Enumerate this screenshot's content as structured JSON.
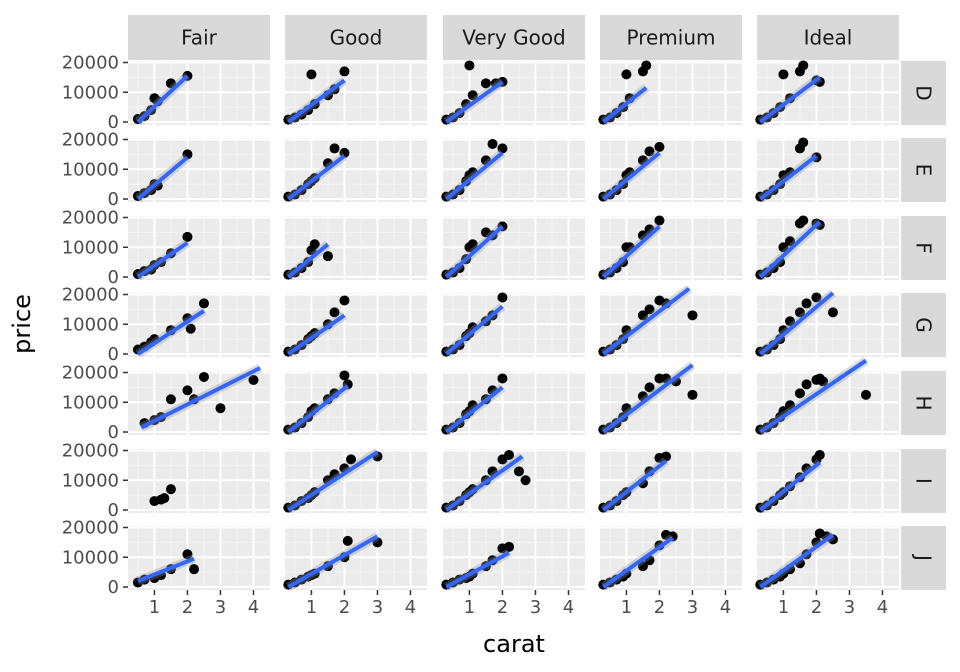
{
  "chart_data": {
    "type": "scatter",
    "title": "",
    "xlabel": "carat",
    "ylabel": "price",
    "xlim": [
      0.2,
      4.5
    ],
    "ylim": [
      -1000,
      20500
    ],
    "x_ticks": [
      1,
      2,
      3,
      4
    ],
    "x_tick_labels": [
      "1",
      "2",
      "3",
      "4"
    ],
    "y_ticks": [
      0,
      10000,
      20000
    ],
    "y_tick_labels": [
      "0",
      "10000",
      "20000"
    ],
    "grid": true,
    "facet_cols": [
      "Fair",
      "Good",
      "Very Good",
      "Premium",
      "Ideal"
    ],
    "facet_rows": [
      "D",
      "E",
      "F",
      "G",
      "H",
      "I",
      "J"
    ],
    "facets": [
      {
        "row": "D",
        "col": "Fair",
        "x": [
          0.5,
          0.7,
          0.9,
          1.0,
          1.1,
          1.5,
          2.0
        ],
        "y": [
          1000,
          2000,
          4000,
          8000,
          7000,
          13000,
          15500
        ],
        "fit": [
          [
            0.5,
            0
          ],
          [
            2.0,
            15500
          ]
        ]
      },
      {
        "row": "D",
        "col": "Good",
        "x": [
          0.3,
          0.5,
          0.7,
          0.9,
          1.0,
          1.1,
          1.5,
          1.7,
          2.0
        ],
        "y": [
          800,
          1500,
          2500,
          4000,
          16000,
          6000,
          9000,
          11000,
          17000
        ],
        "fit": [
          [
            0.3,
            0
          ],
          [
            2.0,
            14000
          ]
        ]
      },
      {
        "row": "D",
        "col": "Very Good",
        "x": [
          0.3,
          0.5,
          0.7,
          0.9,
          1.0,
          1.1,
          1.5,
          1.8,
          2.0
        ],
        "y": [
          800,
          1500,
          3000,
          6000,
          19000,
          9000,
          13000,
          13000,
          13500
        ],
        "fit": [
          [
            0.3,
            0
          ],
          [
            2.0,
            13500
          ]
        ]
      },
      {
        "row": "D",
        "col": "Premium",
        "x": [
          0.3,
          0.5,
          0.7,
          0.9,
          1.0,
          1.1,
          1.5,
          1.6
        ],
        "y": [
          800,
          1500,
          3000,
          5000,
          16000,
          8000,
          17000,
          19000
        ],
        "fit": [
          [
            0.3,
            0
          ],
          [
            1.6,
            11500
          ]
        ]
      },
      {
        "row": "D",
        "col": "Ideal",
        "x": [
          0.3,
          0.5,
          0.7,
          0.9,
          1.0,
          1.2,
          1.5,
          1.6,
          2.0,
          2.1
        ],
        "y": [
          800,
          1500,
          3000,
          5000,
          16000,
          8000,
          17000,
          19000,
          14000,
          13500
        ],
        "fit": [
          [
            0.3,
            0
          ],
          [
            2.1,
            15000
          ]
        ]
      },
      {
        "row": "E",
        "col": "Fair",
        "x": [
          0.5,
          0.7,
          0.9,
          1.0,
          1.1,
          2.0
        ],
        "y": [
          1000,
          2000,
          3000,
          5000,
          4500,
          15000
        ],
        "fit": [
          [
            0.5,
            0
          ],
          [
            2.0,
            14000
          ]
        ]
      },
      {
        "row": "E",
        "col": "Good",
        "x": [
          0.3,
          0.5,
          0.7,
          0.9,
          1.0,
          1.1,
          1.5,
          1.7,
          2.0
        ],
        "y": [
          800,
          1500,
          3000,
          5000,
          6000,
          7000,
          12000,
          17000,
          15500
        ],
        "fit": [
          [
            0.3,
            0
          ],
          [
            2.0,
            14500
          ]
        ]
      },
      {
        "row": "E",
        "col": "Very Good",
        "x": [
          0.3,
          0.5,
          0.7,
          0.9,
          1.0,
          1.1,
          1.5,
          1.7,
          2.0
        ],
        "y": [
          800,
          1500,
          3000,
          6000,
          8000,
          9000,
          13000,
          18500,
          17000
        ],
        "fit": [
          [
            0.3,
            0
          ],
          [
            2.0,
            15500
          ]
        ]
      },
      {
        "row": "E",
        "col": "Premium",
        "x": [
          0.3,
          0.5,
          0.7,
          0.9,
          1.0,
          1.1,
          1.5,
          1.7,
          2.0
        ],
        "y": [
          800,
          1500,
          3000,
          5000,
          8000,
          9000,
          13000,
          16000,
          17500
        ],
        "fit": [
          [
            0.3,
            0
          ],
          [
            2.0,
            15500
          ]
        ]
      },
      {
        "row": "E",
        "col": "Ideal",
        "x": [
          0.3,
          0.5,
          0.7,
          0.9,
          1.0,
          1.2,
          1.5,
          1.6,
          2.0
        ],
        "y": [
          800,
          1500,
          3000,
          5000,
          8000,
          9000,
          17000,
          19000,
          14000
        ],
        "fit": [
          [
            0.3,
            0
          ],
          [
            2.0,
            14500
          ]
        ]
      },
      {
        "row": "F",
        "col": "Fair",
        "x": [
          0.5,
          0.7,
          0.9,
          1.0,
          1.2,
          1.5,
          2.0
        ],
        "y": [
          1000,
          2000,
          2500,
          4000,
          5000,
          8000,
          13500
        ],
        "fit": [
          [
            0.5,
            0
          ],
          [
            2.0,
            11500
          ]
        ]
      },
      {
        "row": "F",
        "col": "Good",
        "x": [
          0.3,
          0.5,
          0.7,
          0.9,
          1.0,
          1.1,
          1.5
        ],
        "y": [
          800,
          1500,
          3000,
          5000,
          9000,
          11000,
          7000
        ],
        "fit": [
          [
            0.3,
            0
          ],
          [
            1.5,
            11000
          ]
        ]
      },
      {
        "row": "F",
        "col": "Very Good",
        "x": [
          0.3,
          0.5,
          0.7,
          0.9,
          1.0,
          1.1,
          1.5,
          1.7,
          2.0
        ],
        "y": [
          800,
          1500,
          3000,
          6000,
          10000,
          11000,
          15000,
          14000,
          17000
        ],
        "fit": [
          [
            0.3,
            0
          ],
          [
            2.0,
            17000
          ]
        ]
      },
      {
        "row": "F",
        "col": "Premium",
        "x": [
          0.3,
          0.5,
          0.7,
          0.9,
          1.0,
          1.1,
          1.5,
          1.7,
          2.0
        ],
        "y": [
          800,
          1500,
          3000,
          5000,
          10000,
          10000,
          14000,
          16000,
          19000
        ],
        "fit": [
          [
            0.3,
            0
          ],
          [
            2.0,
            17000
          ]
        ]
      },
      {
        "row": "F",
        "col": "Ideal",
        "x": [
          0.3,
          0.5,
          0.7,
          0.9,
          1.0,
          1.2,
          1.5,
          1.6,
          2.0,
          2.1
        ],
        "y": [
          800,
          1500,
          3000,
          5000,
          10000,
          12000,
          18000,
          19000,
          18000,
          17500
        ],
        "fit": [
          [
            0.3,
            0
          ],
          [
            2.1,
            18500
          ]
        ]
      },
      {
        "row": "G",
        "col": "Fair",
        "x": [
          0.5,
          0.7,
          0.9,
          1.0,
          1.5,
          2.0,
          2.1,
          2.5
        ],
        "y": [
          1500,
          2500,
          4000,
          5000,
          8000,
          12000,
          8500,
          17000
        ],
        "fit": [
          [
            0.5,
            0
          ],
          [
            2.5,
            14500
          ]
        ]
      },
      {
        "row": "G",
        "col": "Good",
        "x": [
          0.3,
          0.5,
          0.7,
          0.9,
          1.0,
          1.1,
          1.5,
          1.7,
          2.0
        ],
        "y": [
          800,
          1500,
          3000,
          5000,
          6000,
          7000,
          10000,
          14000,
          18000
        ],
        "fit": [
          [
            0.3,
            0
          ],
          [
            2.0,
            13000
          ]
        ]
      },
      {
        "row": "G",
        "col": "Very Good",
        "x": [
          0.3,
          0.5,
          0.7,
          0.9,
          1.0,
          1.1,
          1.5,
          1.7,
          2.0
        ],
        "y": [
          800,
          1500,
          3000,
          6000,
          7000,
          9000,
          11000,
          13000,
          19000
        ],
        "fit": [
          [
            0.3,
            0
          ],
          [
            2.0,
            16000
          ]
        ]
      },
      {
        "row": "G",
        "col": "Premium",
        "x": [
          0.3,
          0.5,
          0.7,
          0.9,
          1.0,
          1.5,
          1.7,
          2.0,
          2.2,
          3.0
        ],
        "y": [
          800,
          1500,
          3000,
          5000,
          8000,
          13000,
          15000,
          18000,
          17000,
          13000
        ],
        "fit": [
          [
            0.3,
            0
          ],
          [
            2.9,
            22000
          ]
        ]
      },
      {
        "row": "G",
        "col": "Ideal",
        "x": [
          0.3,
          0.5,
          0.7,
          0.9,
          1.0,
          1.2,
          1.5,
          1.7,
          2.0,
          2.5
        ],
        "y": [
          800,
          1500,
          3000,
          5000,
          8000,
          11000,
          14000,
          17000,
          19000,
          14000
        ],
        "fit": [
          [
            0.3,
            0
          ],
          [
            2.5,
            20500
          ]
        ]
      },
      {
        "row": "H",
        "col": "Fair",
        "x": [
          0.7,
          1.0,
          1.2,
          1.5,
          2.0,
          2.2,
          2.5,
          3.0,
          4.0
        ],
        "y": [
          3000,
          4000,
          5000,
          11000,
          14000,
          11000,
          18500,
          8000,
          17500
        ],
        "fit": [
          [
            0.6,
            1500
          ],
          [
            4.2,
            21500
          ]
        ]
      },
      {
        "row": "H",
        "col": "Good",
        "x": [
          0.3,
          0.5,
          0.7,
          0.9,
          1.0,
          1.1,
          1.5,
          1.7,
          2.0,
          2.1
        ],
        "y": [
          800,
          1500,
          3000,
          5000,
          7000,
          8000,
          11000,
          13000,
          19000,
          16000
        ],
        "fit": [
          [
            0.3,
            0
          ],
          [
            2.1,
            15500
          ]
        ]
      },
      {
        "row": "H",
        "col": "Very Good",
        "x": [
          0.3,
          0.5,
          0.7,
          0.9,
          1.0,
          1.1,
          1.5,
          1.7,
          2.0
        ],
        "y": [
          800,
          1500,
          3000,
          6000,
          7000,
          9000,
          11000,
          14000,
          18000
        ],
        "fit": [
          [
            0.3,
            0
          ],
          [
            2.0,
            15000
          ]
        ]
      },
      {
        "row": "H",
        "col": "Premium",
        "x": [
          0.3,
          0.5,
          0.7,
          0.9,
          1.0,
          1.5,
          1.7,
          2.0,
          2.2,
          2.5,
          3.0
        ],
        "y": [
          800,
          1500,
          3000,
          5000,
          8000,
          12000,
          15000,
          18000,
          18000,
          17000,
          12500
        ],
        "fit": [
          [
            0.3,
            0
          ],
          [
            3.0,
            22500
          ]
        ]
      },
      {
        "row": "H",
        "col": "Ideal",
        "x": [
          0.3,
          0.5,
          0.7,
          0.9,
          1.0,
          1.2,
          1.5,
          1.7,
          2.0,
          2.1,
          2.2,
          3.5
        ],
        "y": [
          800,
          1500,
          3000,
          5000,
          7000,
          9000,
          13000,
          16000,
          17500,
          18000,
          17000,
          12500
        ],
        "fit": [
          [
            0.3,
            0
          ],
          [
            3.5,
            24000
          ]
        ]
      },
      {
        "row": "I",
        "col": "Fair",
        "x": [
          1.0,
          1.2,
          1.3,
          1.5
        ],
        "y": [
          3000,
          3500,
          4000,
          7000
        ],
        "fit": []
      },
      {
        "row": "I",
        "col": "Good",
        "x": [
          0.3,
          0.5,
          0.7,
          0.9,
          1.0,
          1.1,
          1.5,
          1.7,
          2.0,
          2.2,
          3.0
        ],
        "y": [
          800,
          1500,
          3000,
          4000,
          5000,
          6000,
          10000,
          12000,
          14000,
          17000,
          18000
        ],
        "fit": [
          [
            0.3,
            0
          ],
          [
            3.0,
            19500
          ]
        ]
      },
      {
        "row": "I",
        "col": "Very Good",
        "x": [
          0.3,
          0.5,
          0.7,
          0.9,
          1.0,
          1.1,
          1.5,
          1.7,
          2.0,
          2.2,
          2.5,
          2.7
        ],
        "y": [
          800,
          1500,
          3000,
          5000,
          6000,
          7000,
          10000,
          13000,
          17000,
          18500,
          13000,
          10000
        ],
        "fit": [
          [
            0.3,
            0
          ],
          [
            2.6,
            18000
          ]
        ]
      },
      {
        "row": "I",
        "col": "Premium",
        "x": [
          0.3,
          0.5,
          0.7,
          0.9,
          1.0,
          1.5,
          1.7,
          2.0,
          2.2
        ],
        "y": [
          800,
          1500,
          3000,
          5000,
          6000,
          9000,
          13000,
          17500,
          18000
        ],
        "fit": [
          [
            0.3,
            0
          ],
          [
            2.2,
            16500
          ]
        ]
      },
      {
        "row": "I",
        "col": "Ideal",
        "x": [
          0.3,
          0.5,
          0.7,
          0.9,
          1.0,
          1.2,
          1.5,
          1.7,
          2.0,
          2.1
        ],
        "y": [
          800,
          1500,
          3000,
          5000,
          6000,
          8000,
          11000,
          14000,
          17000,
          18500
        ],
        "fit": [
          [
            0.3,
            0
          ],
          [
            2.1,
            16000
          ]
        ]
      },
      {
        "row": "J",
        "col": "Fair",
        "x": [
          0.5,
          0.7,
          1.0,
          1.2,
          1.5,
          2.0,
          2.2
        ],
        "y": [
          1500,
          2500,
          3000,
          4000,
          6000,
          11000,
          6000
        ],
        "fit": [
          [
            0.5,
            2000
          ],
          [
            2.2,
            9500
          ]
        ]
      },
      {
        "row": "J",
        "col": "Good",
        "x": [
          0.3,
          0.5,
          0.7,
          0.9,
          1.0,
          1.1,
          1.5,
          2.0,
          2.1,
          3.0
        ],
        "y": [
          800,
          1500,
          2500,
          3500,
          4000,
          4500,
          7000,
          10000,
          15500,
          15000
        ],
        "fit": [
          [
            0.3,
            0
          ],
          [
            3.0,
            17000
          ]
        ]
      },
      {
        "row": "J",
        "col": "Very Good",
        "x": [
          0.3,
          0.5,
          0.7,
          0.9,
          1.0,
          1.1,
          1.5,
          1.7,
          2.0,
          2.2
        ],
        "y": [
          800,
          1500,
          2500,
          3000,
          3500,
          4500,
          7000,
          9000,
          13000,
          13500
        ],
        "fit": [
          [
            0.3,
            0
          ],
          [
            2.2,
            11500
          ]
        ]
      },
      {
        "row": "J",
        "col": "Premium",
        "x": [
          0.3,
          0.5,
          0.7,
          0.9,
          1.0,
          1.5,
          1.7,
          2.0,
          2.2,
          2.4
        ],
        "y": [
          800,
          1500,
          2500,
          3500,
          4500,
          7000,
          9000,
          14000,
          17500,
          17000
        ],
        "fit": [
          [
            0.3,
            0
          ],
          [
            2.4,
            16500
          ]
        ]
      },
      {
        "row": "J",
        "col": "Ideal",
        "x": [
          0.3,
          0.5,
          0.7,
          0.9,
          1.0,
          1.2,
          1.5,
          1.7,
          2.0,
          2.1,
          2.3,
          2.5
        ],
        "y": [
          800,
          1500,
          2500,
          3500,
          4500,
          6000,
          8000,
          11000,
          15000,
          18000,
          17000,
          16000
        ],
        "fit": [
          [
            0.3,
            0
          ],
          [
            2.5,
            17500
          ]
        ]
      }
    ]
  },
  "colors": {
    "panel_background": "#ebebeb",
    "grid_major": "#ffffff",
    "grid_minor": "#f5f5f5",
    "strip_background": "#d9d9d9",
    "point": "#000000",
    "fit_line": "#3366ff",
    "fit_band": "#999999",
    "tick_text": "#4d4d4d",
    "axis_title": "#000000"
  }
}
